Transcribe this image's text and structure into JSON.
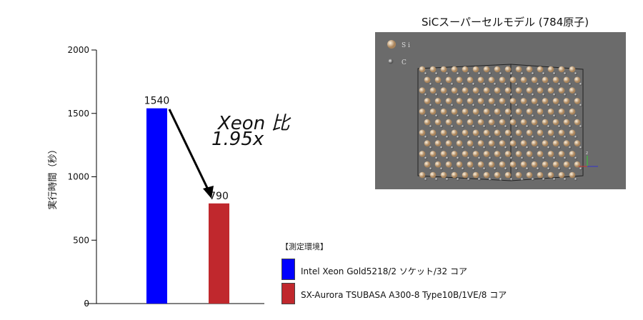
{
  "chart_data": {
    "type": "bar",
    "categories": [
      "Intel Xeon Gold5218/2 ソケット/32 コア",
      "SX-Aurora TSUBASA A300-8 Type10B/1VE/8 コア"
    ],
    "values": [
      1540,
      790
    ],
    "data_labels": [
      "1540",
      "790"
    ],
    "colors": [
      "#0000ff",
      "#c0282d"
    ],
    "ylabel": "実行時間（秒）",
    "ylim": [
      0,
      2000
    ],
    "yticks": [
      "0",
      "500",
      "1000",
      "1500",
      "2000"
    ],
    "grid": false,
    "legend": {
      "title": "【測定環境】",
      "placement": "bottom-right"
    },
    "annotation": {
      "line1": "Xeon 比",
      "line2": "1.95x"
    }
  },
  "model": {
    "title": "SiCスーパーセルモデル (784原子)",
    "legend_si": "S i",
    "legend_c": "C",
    "axis_z": "z",
    "background": "#6b6b6b"
  }
}
